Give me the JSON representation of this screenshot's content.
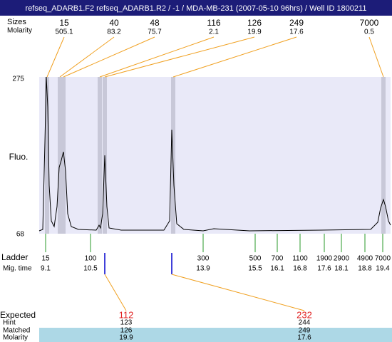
{
  "title": "refseq_ADARB1.F2  refseq_ADARB1.R2 / -1 / MDA-MB-231 (2007-05-10 96hrs) / Well ID 1800211",
  "peak_header": {
    "size_label": "Sizes",
    "molarity_label": "Molarity"
  },
  "peaks": [
    {
      "size": "15",
      "molarity": "505.1"
    },
    {
      "size": "40",
      "molarity": "83.2"
    },
    {
      "size": "48",
      "molarity": "75.7"
    },
    {
      "size": "116",
      "molarity": "2.1"
    },
    {
      "size": "126",
      "molarity": "19.9"
    },
    {
      "size": "249",
      "molarity": "17.6"
    },
    {
      "size": "7000",
      "molarity": "0.5"
    }
  ],
  "axis": {
    "label": "Fluo.",
    "top": "275",
    "bottom": "68"
  },
  "ladder": {
    "label": "Ladder",
    "time_label": "Mig. time",
    "sizes": [
      "15",
      "100",
      "300",
      "500",
      "700",
      "1100",
      "1900",
      "2900",
      "4900",
      "7000"
    ],
    "times": [
      "9.1",
      "10.5",
      "13.9",
      "15.5",
      "16.1",
      "16.8",
      "17.6",
      "18.1",
      "18.8",
      "19.4"
    ]
  },
  "table": {
    "labels": [
      "Expected",
      "Hint",
      "Matched",
      "Molarity"
    ],
    "columns": [
      {
        "expected": "112",
        "hint": "123",
        "matched": "126",
        "molarity": "19.9"
      },
      {
        "expected": "232",
        "hint": "244",
        "matched": "249",
        "molarity": "17.6"
      }
    ]
  }
}
